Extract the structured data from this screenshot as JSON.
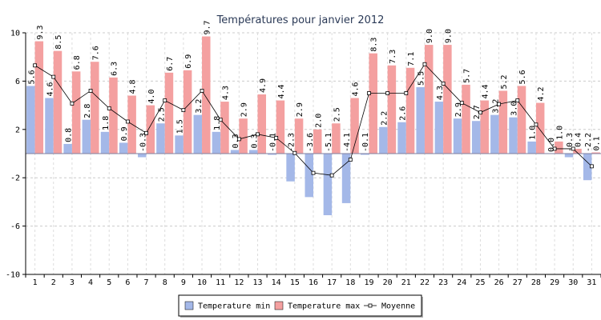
{
  "chart_data": {
    "type": "bar",
    "title": "Températures pour janvier 2012",
    "xlabel": "",
    "ylabel": "",
    "ylim": [
      -10,
      10
    ],
    "yticks": [
      -10,
      -6,
      -2,
      2,
      6,
      10
    ],
    "grid": true,
    "legend_position": "bottom",
    "categories": [
      "1",
      "2",
      "3",
      "4",
      "5",
      "6",
      "7",
      "8",
      "9",
      "10",
      "11",
      "12",
      "13",
      "14",
      "15",
      "16",
      "17",
      "18",
      "19",
      "20",
      "21",
      "22",
      "23",
      "24",
      "25",
      "26",
      "27",
      "28",
      "29",
      "30",
      "31"
    ],
    "series": [
      {
        "name": "Temperature min",
        "type": "bar",
        "color": "#a4b8e8",
        "values": [
          5.6,
          4.6,
          0.8,
          2.8,
          1.8,
          0.9,
          -0.3,
          2.5,
          1.5,
          3.2,
          1.8,
          0.3,
          0.3,
          -0.1,
          -2.3,
          -3.6,
          -5.1,
          -4.1,
          -0.1,
          2.2,
          2.6,
          5.5,
          4.3,
          2.9,
          2.7,
          3.2,
          3.0,
          1.0,
          0.0,
          -0.3,
          -2.2
        ]
      },
      {
        "name": "Temperature max",
        "type": "bar",
        "color": "#f4a0a0",
        "values": [
          9.3,
          8.5,
          6.8,
          7.6,
          6.3,
          4.8,
          4.0,
          6.7,
          6.9,
          9.7,
          4.3,
          2.9,
          4.9,
          4.4,
          2.9,
          2.0,
          2.5,
          4.6,
          8.3,
          7.3,
          7.1,
          9.0,
          9.0,
          5.7,
          4.4,
          5.2,
          5.6,
          4.2,
          1.0,
          0.4,
          0.1
        ]
      },
      {
        "name": "Moyenne",
        "type": "line",
        "color": "#000000",
        "values": [
          7.3,
          6.35,
          4.15,
          5.2,
          3.75,
          2.65,
          1.7,
          4.4,
          3.6,
          5.2,
          2.8,
          1.2,
          1.6,
          1.3,
          0.05,
          -1.6,
          -1.8,
          -0.5,
          5.0,
          5.0,
          5.0,
          7.4,
          5.8,
          4.2,
          3.4,
          4.1,
          4.4,
          2.4,
          0.4,
          0.4,
          -1.05
        ]
      }
    ]
  }
}
